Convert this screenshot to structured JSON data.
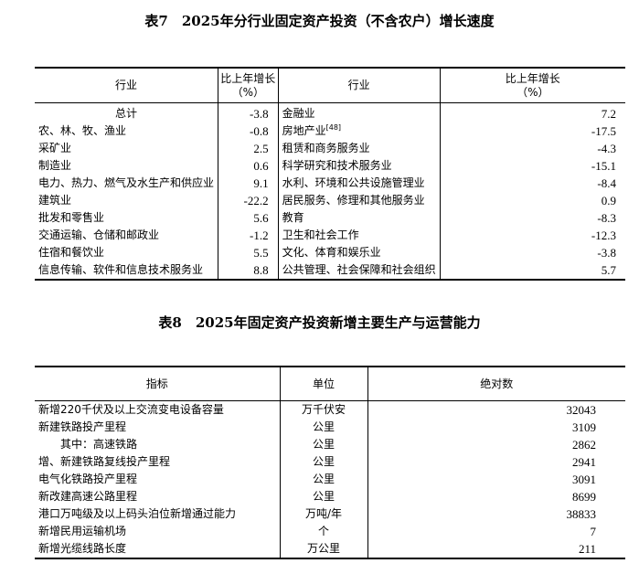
{
  "table7": {
    "title": "表7　2025年分行业固定资产投资（不含农户）增长速度",
    "headers": {
      "industry": "行业",
      "growth_line1": "比上年增长",
      "growth_line2": "（%）"
    },
    "left_rows": [
      {
        "name": "总计",
        "value": "-3.8"
      },
      {
        "name": "农、林、牧、渔业",
        "value": "-0.8"
      },
      {
        "name": "采矿业",
        "value": "2.5"
      },
      {
        "name": "制造业",
        "value": "0.6"
      },
      {
        "name": "电力、热力、燃气及水生产和供应业",
        "value": "9.1"
      },
      {
        "name": "建筑业",
        "value": "-22.2"
      },
      {
        "name": "批发和零售业",
        "value": "5.6"
      },
      {
        "name": "交通运输、仓储和邮政业",
        "value": "-1.2"
      },
      {
        "name": "住宿和餐饮业",
        "value": "5.5"
      },
      {
        "name": "信息传输、软件和信息技术服务业",
        "value": "8.8"
      }
    ],
    "right_rows": [
      {
        "name": "金融业",
        "value": "7.2"
      },
      {
        "name": "房地产业",
        "note": "[48]",
        "value": "-17.5"
      },
      {
        "name": "租赁和商务服务业",
        "value": "-4.3"
      },
      {
        "name": "科学研究和技术服务业",
        "value": "-15.1"
      },
      {
        "name": "水利、环境和公共设施管理业",
        "value": "-8.4"
      },
      {
        "name": "居民服务、修理和其他服务业",
        "value": "0.9"
      },
      {
        "name": "教育",
        "value": "-8.3"
      },
      {
        "name": "卫生和社会工作",
        "value": "-12.3"
      },
      {
        "name": "文化、体育和娱乐业",
        "value": "-3.8"
      },
      {
        "name": "公共管理、社会保障和社会组织",
        "value": "5.7"
      }
    ]
  },
  "table8": {
    "title": "表8　2025年固定资产投资新增主要生产与运营能力",
    "headers": {
      "indicator": "指标",
      "unit": "单位",
      "absolute": "绝对数"
    },
    "rows": [
      {
        "indicator": "新增220千伏及以上交流变电设备容量",
        "unit": "万千伏安",
        "value": "32043"
      },
      {
        "indicator": "新建铁路投产里程",
        "unit": "公里",
        "value": "3109"
      },
      {
        "indicator": "其中：高速铁路",
        "unit": "公里",
        "value": "2862"
      },
      {
        "indicator": "增、新建铁路复线投产里程",
        "unit": "公里",
        "value": "2941"
      },
      {
        "indicator": "电气化铁路投产里程",
        "unit": "公里",
        "value": "3091"
      },
      {
        "indicator": "新改建高速公路里程",
        "unit": "公里",
        "value": "8699"
      },
      {
        "indicator": "港口万吨级及以上码头泊位新增通过能力",
        "unit": "万吨/年",
        "value": "38833"
      },
      {
        "indicator": "新增民用运输机场",
        "unit": "个",
        "value": "7"
      },
      {
        "indicator": "新增光缆线路长度",
        "unit": "万公里",
        "value": "211"
      }
    ]
  }
}
